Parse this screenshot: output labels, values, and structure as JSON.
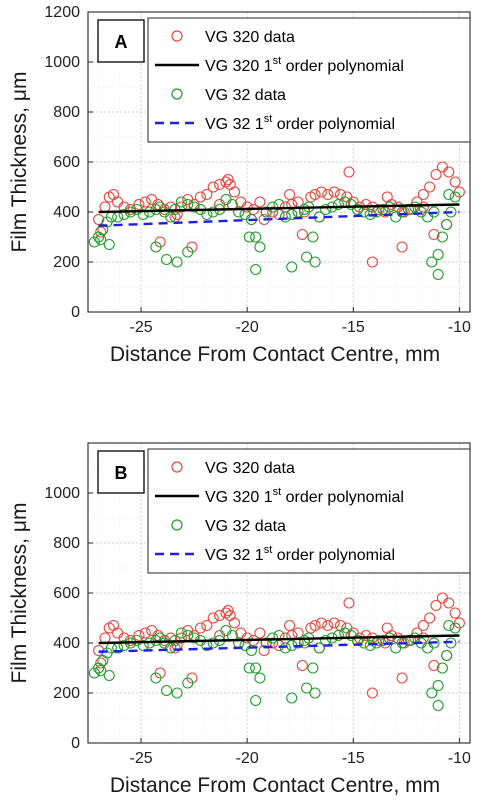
{
  "chart_data": [
    {
      "type": "scatter",
      "panel": "A",
      "xlabel": "Distance From Contact Centre, mm",
      "ylabel": "Film Thickness, μm",
      "xlim": [
        -27.5,
        -9.5
      ],
      "ylim": [
        0,
        1200
      ],
      "xticks": [
        "-25",
        "-20",
        "-15",
        "-10"
      ],
      "yticks": [
        "0",
        "200",
        "400",
        "600",
        "800",
        "1000",
        "1200"
      ],
      "grid": true,
      "legend_position": "top-right",
      "legend": [
        {
          "text": "VG 320 data",
          "sup": "",
          "tail": "",
          "marker": "circle",
          "color": "#e8463c"
        },
        {
          "text": "VG 320 1",
          "sup": "st",
          "tail": " order polynomial",
          "marker": "solid-line",
          "color": "#000000"
        },
        {
          "text": "VG 32 data",
          "sup": "",
          "tail": "",
          "marker": "circle",
          "color": "#1f9e2a"
        },
        {
          "text": "VG 32 1",
          "sup": "st",
          "tail": " order polynomial",
          "marker": "dashed-line",
          "color": "#1f1fe0"
        }
      ],
      "series": [
        {
          "name": "VG 320 data",
          "kind": "scatter",
          "color": "#e8463c",
          "x": [
            -27.0,
            -26.7,
            -26.5,
            -26.3,
            -26.1,
            -25.8,
            -25.5,
            -25.1,
            -24.8,
            -24.5,
            -24.2,
            -23.9,
            -23.6,
            -23.4,
            -23.1,
            -22.8,
            -22.5,
            -22.2,
            -21.9,
            -21.6,
            -21.3,
            -21.0,
            -20.8,
            -20.6,
            -20.3,
            -20.0,
            -19.7,
            -19.4,
            -19.1,
            -18.8,
            -18.5,
            -18.2,
            -17.9,
            -17.6,
            -17.3,
            -17.0,
            -16.8,
            -16.5,
            -16.2,
            -15.9,
            -15.6,
            -15.3,
            -15.0,
            -14.7,
            -14.4,
            -14.1,
            -13.8,
            -13.5,
            -13.2,
            -12.9,
            -12.6,
            -12.3,
            -12.0,
            -11.7,
            -11.4,
            -11.1,
            -10.8,
            -10.5,
            -10.2,
            -10.0,
            -26.9,
            -24.1,
            -22.6,
            -20.9,
            -19.2,
            -17.4,
            -15.2,
            -14.1,
            -12.7,
            -11.2,
            -10.6,
            -23.3,
            -21.3,
            -18.0,
            -16.6,
            -13.4,
            -11.7
          ],
          "y": [
            370,
            420,
            460,
            470,
            440,
            420,
            410,
            430,
            440,
            450,
            430,
            410,
            420,
            380,
            420,
            450,
            430,
            460,
            470,
            500,
            510,
            520,
            510,
            480,
            440,
            420,
            410,
            440,
            400,
            400,
            390,
            420,
            430,
            440,
            400,
            460,
            470,
            480,
            470,
            480,
            470,
            460,
            440,
            420,
            430,
            420,
            410,
            400,
            430,
            420,
            400,
            410,
            440,
            470,
            500,
            550,
            580,
            560,
            520,
            480,
            320,
            280,
            260,
            530,
            370,
            310,
            560,
            200,
            260,
            310,
            350,
            390,
            430,
            470,
            380,
            460,
            420
          ]
        },
        {
          "name": "VG 320 1st order polynomial",
          "kind": "line",
          "color": "#000000",
          "x": [
            -27.0,
            -10.0
          ],
          "y": [
            400,
            430
          ]
        },
        {
          "name": "VG 32 data",
          "kind": "scatter",
          "color": "#1f9e2a",
          "x": [
            -27.2,
            -27.0,
            -26.8,
            -26.6,
            -26.4,
            -26.1,
            -25.8,
            -25.5,
            -25.2,
            -24.9,
            -24.6,
            -24.3,
            -24.1,
            -23.9,
            -23.6,
            -23.4,
            -23.1,
            -22.8,
            -22.5,
            -22.2,
            -21.9,
            -21.6,
            -21.3,
            -21.0,
            -20.7,
            -20.4,
            -20.1,
            -19.8,
            -19.6,
            -19.4,
            -19.1,
            -18.8,
            -18.5,
            -18.2,
            -17.9,
            -17.6,
            -17.3,
            -17.1,
            -16.9,
            -16.6,
            -16.3,
            -16.0,
            -15.7,
            -15.4,
            -15.1,
            -14.8,
            -14.5,
            -14.2,
            -13.9,
            -13.6,
            -13.3,
            -13.0,
            -12.7,
            -12.4,
            -12.1,
            -11.8,
            -11.5,
            -11.2,
            -11.0,
            -10.8,
            -10.6,
            -10.4,
            -10.2,
            -26.9,
            -26.5,
            -24.3,
            -23.8,
            -23.3,
            -22.8,
            -19.9,
            -19.6,
            -17.9,
            -17.2,
            -16.8,
            -11.3,
            -11.0,
            -10.5
          ],
          "y": [
            280,
            300,
            330,
            360,
            380,
            380,
            390,
            400,
            410,
            390,
            400,
            410,
            420,
            400,
            380,
            410,
            440,
            430,
            420,
            410,
            390,
            400,
            410,
            450,
            430,
            400,
            390,
            370,
            300,
            260,
            400,
            420,
            430,
            380,
            390,
            400,
            410,
            420,
            300,
            380,
            410,
            420,
            430,
            440,
            430,
            410,
            400,
            390,
            400,
            410,
            420,
            380,
            400,
            410,
            420,
            400,
            380,
            400,
            230,
            300,
            350,
            400,
            460,
            290,
            270,
            260,
            210,
            200,
            240,
            300,
            170,
            180,
            220,
            200,
            200,
            150,
            470
          ]
        },
        {
          "name": "VG 32 1st order polynomial",
          "kind": "line",
          "color": "#1f1fe0",
          "x": [
            -27.0,
            -10.0
          ],
          "y": [
            345,
            400
          ]
        }
      ]
    },
    {
      "type": "scatter",
      "panel": "B",
      "xlabel": "Distance From Contact Centre, mm",
      "ylabel": "Film Thickness, μm",
      "xlim": [
        -27.5,
        -9.5
      ],
      "ylim": [
        0,
        1200
      ],
      "xticks": [
        "-25",
        "-20",
        "-15",
        "-10"
      ],
      "yticks": [
        "0",
        "200",
        "400",
        "600",
        "800",
        "1000"
      ],
      "grid": true,
      "legend_position": "top-right",
      "legend": [
        {
          "text": "VG 320 data",
          "sup": "",
          "tail": "",
          "marker": "circle",
          "color": "#e8463c"
        },
        {
          "text": "VG 320 1",
          "sup": "st",
          "tail": " order polynomial",
          "marker": "solid-line",
          "color": "#000000"
        },
        {
          "text": "VG 32 data",
          "sup": "",
          "tail": "",
          "marker": "circle",
          "color": "#1f9e2a"
        },
        {
          "text": "VG 32 1",
          "sup": "st",
          "tail": " order polynomial",
          "marker": "dashed-line",
          "color": "#1f1fe0"
        }
      ],
      "series": [
        {
          "name": "VG 320 data",
          "kind": "scatter",
          "color": "#e8463c",
          "x": [
            -27.0,
            -26.7,
            -26.5,
            -26.3,
            -26.1,
            -25.8,
            -25.5,
            -25.1,
            -24.8,
            -24.5,
            -24.2,
            -23.9,
            -23.6,
            -23.4,
            -23.1,
            -22.8,
            -22.5,
            -22.2,
            -21.9,
            -21.6,
            -21.3,
            -21.0,
            -20.8,
            -20.6,
            -20.3,
            -20.0,
            -19.7,
            -19.4,
            -19.1,
            -18.8,
            -18.5,
            -18.2,
            -17.9,
            -17.6,
            -17.3,
            -17.0,
            -16.8,
            -16.5,
            -16.2,
            -15.9,
            -15.6,
            -15.3,
            -15.0,
            -14.7,
            -14.4,
            -14.1,
            -13.8,
            -13.5,
            -13.2,
            -12.9,
            -12.6,
            -12.3,
            -12.0,
            -11.7,
            -11.4,
            -11.1,
            -10.8,
            -10.5,
            -10.2,
            -10.0,
            -26.9,
            -24.1,
            -22.6,
            -20.9,
            -19.2,
            -17.4,
            -15.2,
            -14.1,
            -12.7,
            -11.2,
            -10.6,
            -23.3,
            -21.3,
            -18.0,
            -16.6,
            -13.4,
            -11.7
          ],
          "y": [
            370,
            420,
            460,
            470,
            440,
            420,
            410,
            430,
            440,
            450,
            430,
            410,
            420,
            380,
            420,
            450,
            430,
            460,
            470,
            500,
            510,
            520,
            510,
            480,
            440,
            420,
            410,
            440,
            400,
            400,
            390,
            420,
            430,
            440,
            400,
            460,
            470,
            480,
            470,
            480,
            470,
            460,
            440,
            420,
            430,
            420,
            410,
            400,
            430,
            420,
            400,
            410,
            440,
            470,
            500,
            550,
            580,
            560,
            520,
            480,
            320,
            280,
            260,
            530,
            370,
            310,
            560,
            200,
            260,
            310,
            350,
            390,
            430,
            470,
            380,
            460,
            420
          ]
        },
        {
          "name": "VG 320 1st order polynomial",
          "kind": "line",
          "color": "#000000",
          "x": [
            -27.0,
            -10.0
          ],
          "y": [
            400,
            430
          ]
        },
        {
          "name": "VG 32 data",
          "kind": "scatter",
          "color": "#1f9e2a",
          "x": [
            -27.2,
            -27.0,
            -26.8,
            -26.6,
            -26.4,
            -26.1,
            -25.8,
            -25.5,
            -25.2,
            -24.9,
            -24.6,
            -24.3,
            -24.1,
            -23.9,
            -23.6,
            -23.4,
            -23.1,
            -22.8,
            -22.5,
            -22.2,
            -21.9,
            -21.6,
            -21.3,
            -21.0,
            -20.7,
            -20.4,
            -20.1,
            -19.8,
            -19.6,
            -19.4,
            -19.1,
            -18.8,
            -18.5,
            -18.2,
            -17.9,
            -17.6,
            -17.3,
            -17.1,
            -16.9,
            -16.6,
            -16.3,
            -16.0,
            -15.7,
            -15.4,
            -15.1,
            -14.8,
            -14.5,
            -14.2,
            -13.9,
            -13.6,
            -13.3,
            -13.0,
            -12.7,
            -12.4,
            -12.1,
            -11.8,
            -11.5,
            -11.2,
            -11.0,
            -10.8,
            -10.6,
            -10.4,
            -10.2,
            -26.9,
            -26.5,
            -24.3,
            -23.8,
            -23.3,
            -22.8,
            -19.9,
            -19.6,
            -17.9,
            -17.2,
            -16.8,
            -11.3,
            -11.0,
            -10.5
          ],
          "y": [
            280,
            300,
            330,
            360,
            380,
            380,
            390,
            400,
            410,
            390,
            400,
            410,
            420,
            400,
            380,
            410,
            440,
            430,
            420,
            410,
            390,
            400,
            410,
            450,
            430,
            400,
            390,
            370,
            300,
            260,
            400,
            420,
            430,
            380,
            390,
            400,
            410,
            420,
            300,
            380,
            410,
            420,
            430,
            440,
            430,
            410,
            400,
            390,
            400,
            410,
            420,
            380,
            400,
            410,
            420,
            400,
            380,
            400,
            230,
            300,
            350,
            400,
            460,
            290,
            270,
            260,
            210,
            200,
            240,
            300,
            170,
            180,
            220,
            200,
            200,
            150,
            470
          ]
        },
        {
          "name": "VG 32 1st order polynomial",
          "kind": "line",
          "color": "#1f1fe0",
          "x": [
            -27.0,
            -10.0
          ],
          "y": [
            365,
            405
          ]
        }
      ]
    }
  ]
}
